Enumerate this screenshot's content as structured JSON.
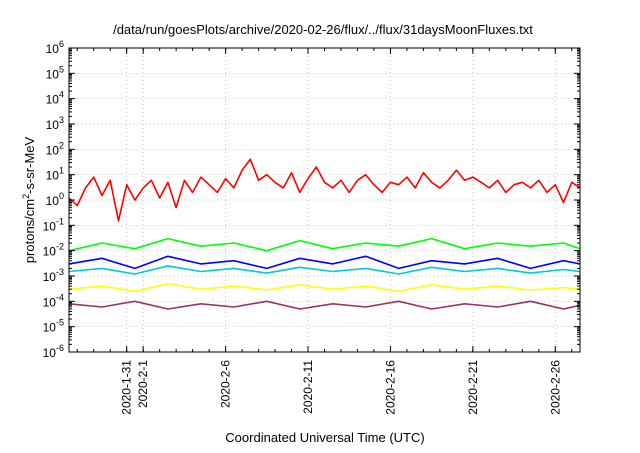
{
  "chart_data": {
    "type": "line",
    "title": "/data/run/goesPlots/archive/2020-02-26/flux/../flux/31daysMoonFluxes.txt",
    "xlabel": "Coordinated Universal Time (UTC)",
    "ylabel": "protons/cm2-s-sr-MeV",
    "ylabel_parts": {
      "pre": "protons/cm",
      "sup": "2",
      "post": "-s-sr-MeV"
    },
    "yscale": "log",
    "ylim": [
      1e-06,
      1000000.0
    ],
    "y_ticks": [
      {
        "base": "10",
        "exp": "-6"
      },
      {
        "base": "10",
        "exp": "-5"
      },
      {
        "base": "10",
        "exp": "-4"
      },
      {
        "base": "10",
        "exp": "-3"
      },
      {
        "base": "10",
        "exp": "-2"
      },
      {
        "base": "10",
        "exp": "-1"
      },
      {
        "base": "10",
        "exp": "0"
      },
      {
        "base": "10",
        "exp": "1"
      },
      {
        "base": "10",
        "exp": "2"
      },
      {
        "base": "10",
        "exp": "3"
      },
      {
        "base": "10",
        "exp": "4"
      },
      {
        "base": "10",
        "exp": "5"
      },
      {
        "base": "10",
        "exp": "6"
      }
    ],
    "xlim": [
      "2020-01-27T12:00",
      "2020-02-27T12:00"
    ],
    "x_ticks": [
      "2020-1-31",
      "2020-2-1",
      "2020-2-6",
      "2020-2-11",
      "2020-2-16",
      "2020-2-21",
      "2020-2-26"
    ],
    "x_tick_dates": [
      "2020-01-31",
      "2020-02-01",
      "2020-02-06",
      "2020-02-11",
      "2020-02-16",
      "2020-02-21",
      "2020-02-26"
    ],
    "grid": true,
    "series": [
      {
        "color": "#ff0000",
        "x": [
          "2020-01-27T12:00",
          "2020-01-28T00:00",
          "2020-01-28T12:00",
          "2020-01-29T00:00",
          "2020-01-29T12:00",
          "2020-01-30T00:00",
          "2020-01-30T12:00",
          "2020-01-31T00:00",
          "2020-01-31T12:00",
          "2020-02-01T00:00",
          "2020-02-01T12:00",
          "2020-02-02T00:00",
          "2020-02-02T12:00",
          "2020-02-03T00:00",
          "2020-02-03T12:00",
          "2020-02-04T00:00",
          "2020-02-04T12:00",
          "2020-02-05T00:00",
          "2020-02-05T12:00",
          "2020-02-06T00:00",
          "2020-02-06T12:00",
          "2020-02-07T00:00",
          "2020-02-07T12:00",
          "2020-02-08T00:00",
          "2020-02-08T12:00",
          "2020-02-09T00:00",
          "2020-02-09T12:00",
          "2020-02-10T00:00",
          "2020-02-10T12:00",
          "2020-02-11T00:00",
          "2020-02-11T12:00",
          "2020-02-12T00:00",
          "2020-02-12T12:00",
          "2020-02-13T00:00",
          "2020-02-13T12:00",
          "2020-02-14T00:00",
          "2020-02-14T12:00",
          "2020-02-15T00:00",
          "2020-02-15T12:00",
          "2020-02-16T00:00",
          "2020-02-16T12:00",
          "2020-02-17T00:00",
          "2020-02-17T12:00",
          "2020-02-18T00:00",
          "2020-02-18T12:00",
          "2020-02-19T00:00",
          "2020-02-19T12:00",
          "2020-02-20T00:00",
          "2020-02-20T12:00",
          "2020-02-21T00:00",
          "2020-02-21T12:00",
          "2020-02-22T00:00",
          "2020-02-22T12:00",
          "2020-02-23T00:00",
          "2020-02-23T12:00",
          "2020-02-24T00:00",
          "2020-02-24T12:00",
          "2020-02-25T00:00",
          "2020-02-25T12:00",
          "2020-02-26T00:00",
          "2020-02-26T12:00",
          "2020-02-27T00:00",
          "2020-02-27T12:00"
        ],
        "values": [
          1.2,
          0.6,
          3,
          8,
          1.5,
          6,
          0.15,
          4,
          1,
          3,
          6,
          1.2,
          5,
          0.5,
          6,
          2,
          8,
          4,
          2,
          7,
          3,
          15,
          40,
          6,
          10,
          5,
          3,
          12,
          2,
          7,
          20,
          5,
          3,
          6,
          2,
          6,
          10,
          4,
          2,
          5,
          4,
          8,
          3,
          12,
          5,
          3,
          6,
          15,
          6,
          8,
          5,
          3,
          6,
          2,
          4,
          5,
          3,
          6,
          2,
          4,
          0.8,
          5,
          3
        ]
      },
      {
        "color": "#00ff00",
        "x": [
          "2020-01-27T12:00",
          "2020-01-29T12:00",
          "2020-01-31T12:00",
          "2020-02-02T12:00",
          "2020-02-04T12:00",
          "2020-02-06T12:00",
          "2020-02-08T12:00",
          "2020-02-10T12:00",
          "2020-02-12T12:00",
          "2020-02-14T12:00",
          "2020-02-16T12:00",
          "2020-02-18T12:00",
          "2020-02-20T12:00",
          "2020-02-22T12:00",
          "2020-02-24T12:00",
          "2020-02-26T12:00",
          "2020-02-27T12:00"
        ],
        "values": [
          0.01,
          0.02,
          0.012,
          0.03,
          0.015,
          0.02,
          0.01,
          0.025,
          0.012,
          0.02,
          0.015,
          0.03,
          0.012,
          0.02,
          0.015,
          0.02,
          0.012
        ]
      },
      {
        "color": "#0000ff",
        "x": [
          "2020-01-27T12:00",
          "2020-01-29T12:00",
          "2020-01-31T12:00",
          "2020-02-02T12:00",
          "2020-02-04T12:00",
          "2020-02-06T12:00",
          "2020-02-08T12:00",
          "2020-02-10T12:00",
          "2020-02-12T12:00",
          "2020-02-14T12:00",
          "2020-02-16T12:00",
          "2020-02-18T12:00",
          "2020-02-20T12:00",
          "2020-02-22T12:00",
          "2020-02-24T12:00",
          "2020-02-26T12:00",
          "2020-02-27T12:00"
        ],
        "values": [
          0.003,
          0.005,
          0.002,
          0.006,
          0.003,
          0.004,
          0.002,
          0.005,
          0.003,
          0.006,
          0.002,
          0.004,
          0.003,
          0.005,
          0.002,
          0.004,
          0.003
        ]
      },
      {
        "color": "#00cccc",
        "x": [
          "2020-01-27T12:00",
          "2020-01-29T12:00",
          "2020-01-31T12:00",
          "2020-02-02T12:00",
          "2020-02-04T12:00",
          "2020-02-06T12:00",
          "2020-02-08T12:00",
          "2020-02-10T12:00",
          "2020-02-12T12:00",
          "2020-02-14T12:00",
          "2020-02-16T12:00",
          "2020-02-18T12:00",
          "2020-02-20T12:00",
          "2020-02-22T12:00",
          "2020-02-24T12:00",
          "2020-02-26T12:00",
          "2020-02-27T12:00"
        ],
        "values": [
          0.0015,
          0.002,
          0.0012,
          0.0025,
          0.0015,
          0.002,
          0.0013,
          0.0022,
          0.0015,
          0.002,
          0.0012,
          0.0022,
          0.0015,
          0.002,
          0.0013,
          0.0018,
          0.0015
        ]
      },
      {
        "color": "#ffff00",
        "x": [
          "2020-01-27T12:00",
          "2020-01-29T12:00",
          "2020-01-31T12:00",
          "2020-02-02T12:00",
          "2020-02-04T12:00",
          "2020-02-06T12:00",
          "2020-02-08T12:00",
          "2020-02-10T12:00",
          "2020-02-12T12:00",
          "2020-02-14T12:00",
          "2020-02-16T12:00",
          "2020-02-18T12:00",
          "2020-02-20T12:00",
          "2020-02-22T12:00",
          "2020-02-24T12:00",
          "2020-02-26T12:00",
          "2020-02-27T12:00"
        ],
        "values": [
          0.0003,
          0.0004,
          0.00025,
          0.0005,
          0.0003,
          0.0004,
          0.00028,
          0.00045,
          0.0003,
          0.0004,
          0.00025,
          0.00045,
          0.0003,
          0.0004,
          0.00028,
          0.00035,
          0.0003
        ]
      },
      {
        "color": "#993366",
        "x": [
          "2020-01-27T12:00",
          "2020-01-29T12:00",
          "2020-01-31T12:00",
          "2020-02-02T12:00",
          "2020-02-04T12:00",
          "2020-02-06T12:00",
          "2020-02-08T12:00",
          "2020-02-10T12:00",
          "2020-02-12T12:00",
          "2020-02-14T12:00",
          "2020-02-16T12:00",
          "2020-02-18T12:00",
          "2020-02-20T12:00",
          "2020-02-22T12:00",
          "2020-02-24T12:00",
          "2020-02-26T12:00",
          "2020-02-27T12:00"
        ],
        "values": [
          8e-05,
          6e-05,
          0.0001,
          5e-05,
          8e-05,
          6e-05,
          0.0001,
          5e-05,
          8e-05,
          6e-05,
          0.0001,
          5e-05,
          8e-05,
          6e-05,
          0.0001,
          5e-05,
          7e-05
        ]
      }
    ]
  }
}
